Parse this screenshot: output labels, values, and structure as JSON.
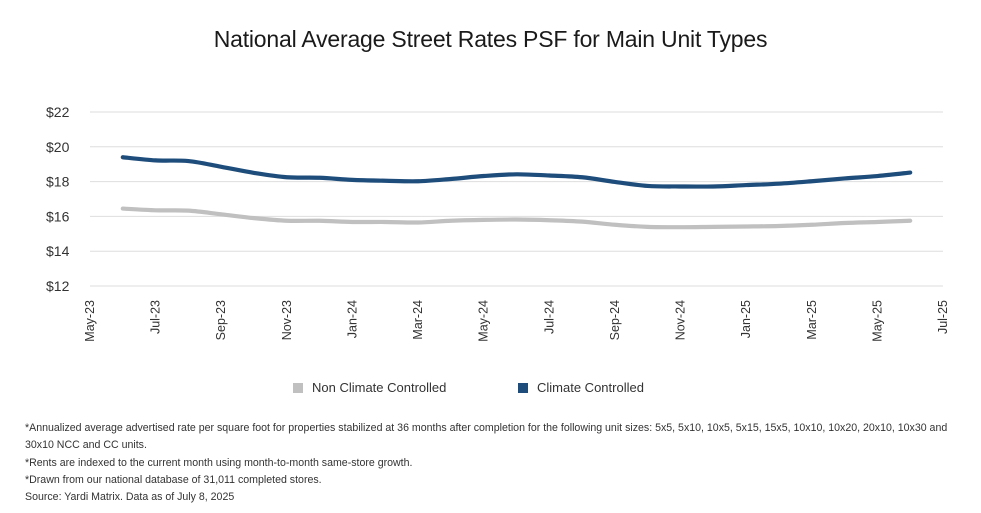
{
  "chart_data": {
    "type": "line",
    "title": "National Average Street Rates PSF for Main Unit Types",
    "x_ticks": [
      "May-23",
      "Jul-23",
      "Sep-23",
      "Nov-23",
      "Jan-24",
      "Mar-24",
      "May-24",
      "Jul-24",
      "Sep-24",
      "Nov-24",
      "Jan-25",
      "Mar-25",
      "May-25",
      "Jul-25"
    ],
    "y_ticks": [
      "$22",
      "$20",
      "$18",
      "$16",
      "$14",
      "$12"
    ],
    "ylim": [
      12,
      22
    ],
    "xlim": [
      0,
      26
    ],
    "grid": true,
    "legend_position": "bottom-center",
    "series": [
      {
        "name": "Non Climate Controlled",
        "color": "#c0c0c0",
        "x": [
          1,
          2,
          3,
          4,
          5,
          6,
          7,
          8,
          9,
          10,
          11,
          12,
          13,
          14,
          15,
          16,
          17,
          18,
          19,
          20,
          21,
          22,
          23,
          24,
          25
        ],
        "values": [
          16.45,
          16.35,
          16.33,
          16.12,
          15.9,
          15.75,
          15.75,
          15.68,
          15.68,
          15.65,
          15.75,
          15.8,
          15.82,
          15.78,
          15.7,
          15.52,
          15.4,
          15.38,
          15.4,
          15.42,
          15.45,
          15.52,
          15.62,
          15.68,
          15.75
        ]
      },
      {
        "name": "Climate Controlled",
        "color": "#1e4d7c",
        "x": [
          1,
          2,
          3,
          4,
          5,
          6,
          7,
          8,
          9,
          10,
          11,
          12,
          13,
          14,
          15,
          16,
          17,
          18,
          19,
          20,
          21,
          22,
          23,
          24,
          25
        ],
        "values": [
          19.4,
          19.22,
          19.18,
          18.85,
          18.5,
          18.25,
          18.22,
          18.1,
          18.05,
          18.02,
          18.15,
          18.32,
          18.42,
          18.35,
          18.25,
          17.98,
          17.75,
          17.72,
          17.72,
          17.8,
          17.88,
          18.02,
          18.18,
          18.32,
          18.52
        ]
      }
    ]
  },
  "notes": [
    "*Annualized average advertised rate per square foot for properties stabilized at 36 months after completion for the following unit sizes: 5x5, 5x10, 10x5, 5x15, 15x5, 10x10, 10x20, 20x10, 10x30 and 30x10 NCC and CC units.",
    "*Rents are indexed to the current month using month-to-month same-store growth.",
    "*Drawn from our national database of 31,011 completed stores.",
    "Source: Yardi Matrix. Data as of July 8, 2025"
  ]
}
